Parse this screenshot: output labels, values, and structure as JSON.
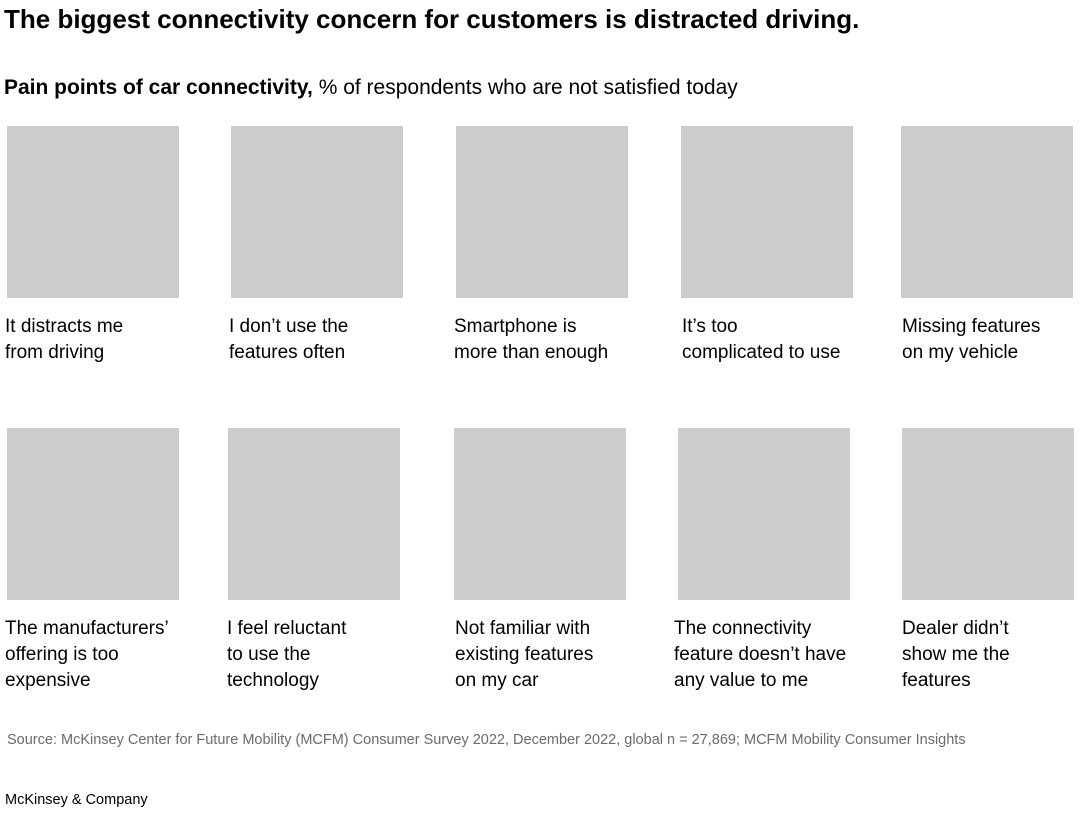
{
  "header": {
    "title": "The biggest connectivity concern for customers is distracted driving.",
    "subtitle_bold": "Pain points of car connectivity,",
    "subtitle_text": "% of respondents who are not satisfied today"
  },
  "items": [
    {
      "lines": [
        "It distracts me",
        "from driving"
      ]
    },
    {
      "lines": [
        "I don’t use the",
        "features often"
      ]
    },
    {
      "lines": [
        "Smartphone is",
        "more than enough"
      ]
    },
    {
      "lines": [
        "It’s too",
        "complicated to use"
      ]
    },
    {
      "lines": [
        "Missing features",
        "on my vehicle"
      ]
    },
    {
      "lines": [
        "The manufacturers’",
        "offering is too",
        "expensive"
      ]
    },
    {
      "lines": [
        "I feel reluctant",
        "to use the",
        "technology"
      ]
    },
    {
      "lines": [
        "Not familiar with",
        "existing features",
        "on my car"
      ]
    },
    {
      "lines": [
        "The connectivity",
        "feature doesn’t have",
        "any value to me"
      ]
    },
    {
      "lines": [
        "Dealer didn’t",
        "show me the",
        "features"
      ]
    }
  ],
  "footer": {
    "source": "Source: McKinsey Center for Future Mobility (MCFM) Consumer Survey 2022, December 2022, global n = 27,869; MCFM Mobility Consumer Insights",
    "brand": "McKinsey & Company"
  }
}
